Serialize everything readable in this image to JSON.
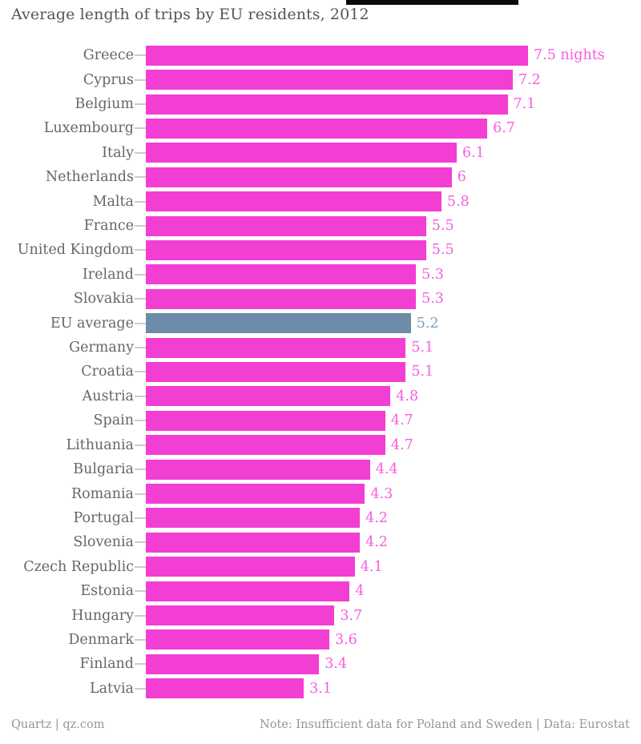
{
  "title": "Average length of trips by EU residents, 2012",
  "footer": {
    "left": "Quartz | qz.com",
    "right": "Note: Insufficient data for Poland and Sweden | Data: Eurostat"
  },
  "colors": {
    "bar_pink": "#f23ed2",
    "value_pink": "#f55ede",
    "bar_blue": "#6e8ca9",
    "value_blue": "#7ea0bc",
    "label_gray": "#666666",
    "title_gray": "#555555",
    "footer_gray": "#959595",
    "tick_gray": "#cccccc"
  },
  "chart_data": {
    "type": "bar",
    "orientation": "horizontal",
    "title": "Average length of trips by EU residents, 2012",
    "xlabel": "",
    "ylabel": "",
    "xlim": [
      0,
      7.5
    ],
    "grid": false,
    "legend": "none",
    "unit": "nights",
    "highlight_category": "EU average",
    "categories": [
      "Greece",
      "Cyprus",
      "Belgium",
      "Luxembourg",
      "Italy",
      "Netherlands",
      "Malta",
      "France",
      "United Kingdom",
      "Ireland",
      "Slovakia",
      "EU average",
      "Germany",
      "Croatia",
      "Austria",
      "Spain",
      "Lithuania",
      "Bulgaria",
      "Romania",
      "Portugal",
      "Slovenia",
      "Czech Republic",
      "Estonia",
      "Hungary",
      "Denmark",
      "Finland",
      "Latvia"
    ],
    "values": [
      7.5,
      7.2,
      7.1,
      6.7,
      6.1,
      6,
      5.8,
      5.5,
      5.5,
      5.3,
      5.3,
      5.2,
      5.1,
      5.1,
      4.8,
      4.7,
      4.7,
      4.4,
      4.3,
      4.2,
      4.2,
      4.1,
      4,
      3.7,
      3.6,
      3.4,
      3.1
    ],
    "value_labels": [
      "7.5 nights",
      "7.2",
      "7.1",
      "6.7",
      "6.1",
      "6",
      "5.8",
      "5.5",
      "5.5",
      "5.3",
      "5.3",
      "5.2",
      "5.1",
      "5.1",
      "4.8",
      "4.7",
      "4.7",
      "4.4",
      "4.3",
      "4.2",
      "4.2",
      "4.1",
      "4",
      "3.7",
      "3.6",
      "3.4",
      "3.1"
    ]
  }
}
